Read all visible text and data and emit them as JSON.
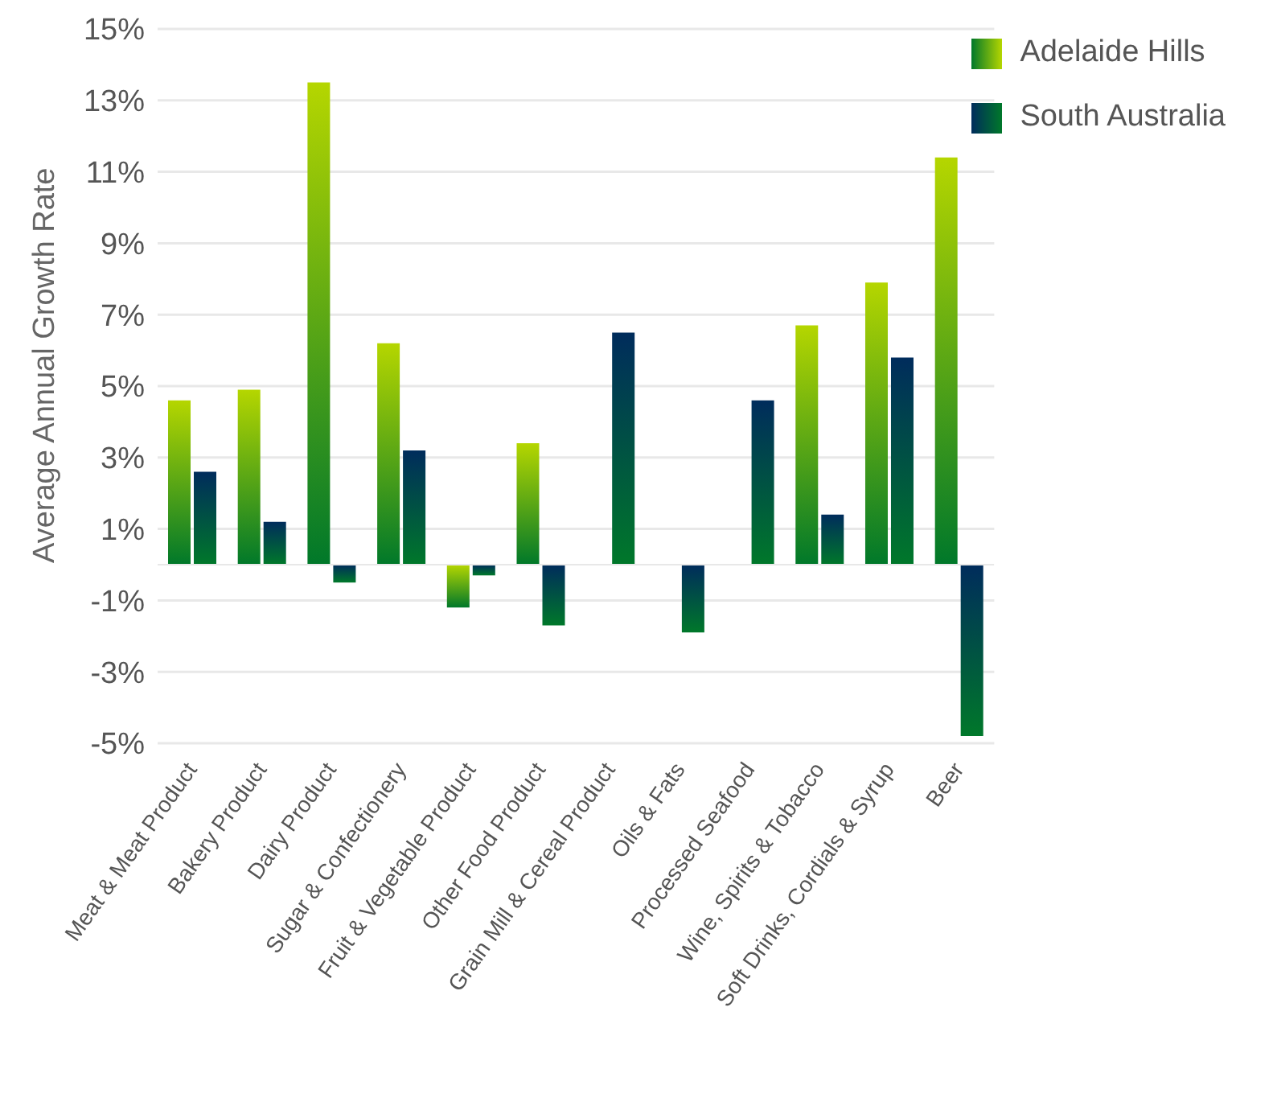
{
  "chart_data": {
    "type": "bar",
    "ylabel": "Average Annual Growth Rate",
    "categories": [
      "Meat & Meat Product",
      "Bakery Product",
      "Dairy Product",
      "Sugar & Confectionery",
      "Fruit & Vegetable Product",
      "Other Food Product",
      "Grain Mill & Cereal Product",
      "Oils & Fats",
      "Processed Seafood",
      "Wine, Spirits & Tobacco",
      "Soft Drinks, Cordials & Syrup",
      "Beer"
    ],
    "series": [
      {
        "name": "Adelaide Hills",
        "color": "#b5d600",
        "values": [
          4.6,
          4.9,
          13.5,
          6.2,
          -1.2,
          3.4,
          null,
          null,
          null,
          6.7,
          7.9,
          11.4
        ]
      },
      {
        "name": "South Australia",
        "color": "#002c5c",
        "values": [
          2.6,
          1.2,
          -0.5,
          3.2,
          -0.3,
          -1.7,
          6.5,
          -1.9,
          4.6,
          1.4,
          5.8,
          -4.8
        ]
      }
    ],
    "ylim": [
      -5,
      15
    ],
    "yticks": [
      {
        "value": -5,
        "label": "-5%"
      },
      {
        "value": -3,
        "label": "-3%"
      },
      {
        "value": -1,
        "label": "-1%"
      },
      {
        "value": 1,
        "label": "1%"
      },
      {
        "value": 3,
        "label": "3%"
      },
      {
        "value": 5,
        "label": "5%"
      },
      {
        "value": 7,
        "label": "7%"
      },
      {
        "value": 9,
        "label": "9%"
      },
      {
        "value": 11,
        "label": "11%"
      },
      {
        "value": 13,
        "label": "13%"
      },
      {
        "value": 15,
        "label": "15%"
      }
    ],
    "grid": "y",
    "legend": "top right"
  }
}
